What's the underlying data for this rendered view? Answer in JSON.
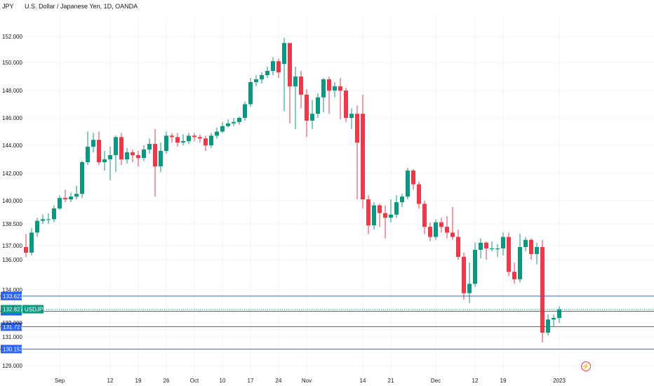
{
  "header": {
    "symbol_short": "JPY",
    "title": "U.S. Dollar / Japanese Yen, 1D, OANDA"
  },
  "colors": {
    "up": "#089981",
    "down": "#f23645",
    "level": "#2962ff",
    "grid": "#f0f3fa"
  },
  "chart_data": {
    "type": "candlestick",
    "title": "U.S. Dollar / Japanese Yen, 1D, OANDA",
    "ylim": [
      128.0,
      153.0
    ],
    "y_ticks": [
      {
        "value": 152.0,
        "label": "152.000"
      },
      {
        "value": 150.0,
        "label": "150.000"
      },
      {
        "value": 148.0,
        "label": "148.000"
      },
      {
        "value": 146.0,
        "label": "146.000"
      },
      {
        "value": 144.0,
        "label": "144.000"
      },
      {
        "value": 142.0,
        "label": "142.000"
      },
      {
        "value": 140.0,
        "label": "140.000"
      },
      {
        "value": 138.5,
        "label": "138.500"
      },
      {
        "value": 137.0,
        "label": "137.000"
      },
      {
        "value": 136.0,
        "label": "136.000"
      },
      {
        "value": 134.0,
        "label": "134.000"
      },
      {
        "value": 132.0,
        "label": "132.000"
      },
      {
        "value": 131.0,
        "label": "131.000"
      },
      {
        "value": 129.0,
        "label": "129.000"
      }
    ],
    "x_ticks": [
      {
        "index": 6,
        "label": "Sep"
      },
      {
        "index": 15,
        "label": "12"
      },
      {
        "index": 20,
        "label": "19"
      },
      {
        "index": 25,
        "label": "26"
      },
      {
        "index": 30,
        "label": "Oct"
      },
      {
        "index": 35,
        "label": "10"
      },
      {
        "index": 40,
        "label": "17"
      },
      {
        "index": 45,
        "label": "24"
      },
      {
        "index": 50,
        "label": "Nov"
      },
      {
        "index": 60,
        "label": "14"
      },
      {
        "index": 65,
        "label": "21"
      },
      {
        "index": 73,
        "label": "Dec"
      },
      {
        "index": 80,
        "label": "12"
      },
      {
        "index": 85,
        "label": "19"
      },
      {
        "index": 95,
        "label": "2023"
      }
    ],
    "candles": [
      [
        136.9,
        136.5,
        137.8,
        136.2
      ],
      [
        136.5,
        137.9,
        138.2,
        136.3
      ],
      [
        137.9,
        138.7,
        138.9,
        137.6
      ],
      [
        138.7,
        138.8,
        139.1,
        138.5
      ],
      [
        138.8,
        138.8,
        139.2,
        138.5
      ],
      [
        138.8,
        139.5,
        139.7,
        138.6
      ],
      [
        139.5,
        140.2,
        140.4,
        139.4
      ],
      [
        140.2,
        140.1,
        140.8,
        139.9
      ],
      [
        140.1,
        140.3,
        140.6,
        139.9
      ],
      [
        140.3,
        140.5,
        141.1,
        140.1
      ],
      [
        140.5,
        142.8,
        142.9,
        140.2
      ],
      [
        142.8,
        143.9,
        145.0,
        142.6
      ],
      [
        143.9,
        144.4,
        144.9,
        143.5
      ],
      [
        144.4,
        142.8,
        145.0,
        142.6
      ],
      [
        142.8,
        143.0,
        143.6,
        142.2
      ],
      [
        143.0,
        143.3,
        143.9,
        141.5
      ],
      [
        143.3,
        144.6,
        144.7,
        142.1
      ],
      [
        144.6,
        143.0,
        144.9,
        142.6
      ],
      [
        143.0,
        143.5,
        143.8,
        142.7
      ],
      [
        143.5,
        143.3,
        143.7,
        142.8
      ],
      [
        143.3,
        143.1,
        143.6,
        142.5
      ],
      [
        143.1,
        143.7,
        144.0,
        142.9
      ],
      [
        143.7,
        144.1,
        144.5,
        143.4
      ],
      [
        144.1,
        142.5,
        145.2,
        140.3
      ],
      [
        142.5,
        143.6,
        144.2,
        142.1
      ],
      [
        143.6,
        144.7,
        145.0,
        143.4
      ],
      [
        144.7,
        144.6,
        144.9,
        144.2
      ],
      [
        144.6,
        144.2,
        144.9,
        143.9
      ],
      [
        144.2,
        144.3,
        144.8,
        144.0
      ],
      [
        144.3,
        144.7,
        144.9,
        144.1
      ],
      [
        144.7,
        144.6,
        144.9,
        144.3
      ],
      [
        144.6,
        144.5,
        144.8,
        144.2
      ],
      [
        144.5,
        144.0,
        144.7,
        143.6
      ],
      [
        144.0,
        144.7,
        144.9,
        143.8
      ],
      [
        144.7,
        145.0,
        145.3,
        144.5
      ],
      [
        145.0,
        145.4,
        145.7,
        144.9
      ],
      [
        145.4,
        145.6,
        145.9,
        145.3
      ],
      [
        145.6,
        145.7,
        146.0,
        145.4
      ],
      [
        145.7,
        146.0,
        146.1,
        145.5
      ],
      [
        146.0,
        147.0,
        147.2,
        145.8
      ],
      [
        147.0,
        148.6,
        148.9,
        146.8
      ],
      [
        148.6,
        148.8,
        149.1,
        148.3
      ],
      [
        148.8,
        149.1,
        149.3,
        148.5
      ],
      [
        149.1,
        149.4,
        149.7,
        148.9
      ],
      [
        149.4,
        150.1,
        150.4,
        149.1
      ],
      [
        150.1,
        149.3,
        150.3,
        148.9
      ],
      [
        149.9,
        151.5,
        151.9,
        146.5
      ],
      [
        151.5,
        148.3,
        150.2,
        145.6
      ],
      [
        148.3,
        149.0,
        149.7,
        145.2
      ],
      [
        149.0,
        147.7,
        149.4,
        146.7
      ],
      [
        147.7,
        145.8,
        148.1,
        144.6
      ],
      [
        145.8,
        146.3,
        147.3,
        145.2
      ],
      [
        146.3,
        147.5,
        147.8,
        146.0
      ],
      [
        147.5,
        148.8,
        148.9,
        146.4
      ],
      [
        148.8,
        148.0,
        149.0,
        146.3
      ],
      [
        148.0,
        148.3,
        148.6,
        147.5
      ],
      [
        148.3,
        148.0,
        148.9,
        145.9
      ],
      [
        148.0,
        146.0,
        148.2,
        145.7
      ],
      [
        146.0,
        146.3,
        146.7,
        145.2
      ],
      [
        146.3,
        144.2,
        146.9,
        140.1
      ],
      [
        146.3,
        140.1,
        147.7,
        139.5
      ],
      [
        140.1,
        138.4,
        140.4,
        137.8
      ],
      [
        138.4,
        139.7,
        139.9,
        138.1
      ],
      [
        139.7,
        139.2,
        139.8,
        138.3
      ],
      [
        139.2,
        138.9,
        139.7,
        137.5
      ],
      [
        138.9,
        139.1,
        140.1,
        138.6
      ],
      [
        139.1,
        139.9,
        140.4,
        138.9
      ],
      [
        139.9,
        140.3,
        140.5,
        139.6
      ],
      [
        140.3,
        142.2,
        142.4,
        140.1
      ],
      [
        142.2,
        141.2,
        142.3,
        140.8
      ],
      [
        141.2,
        139.8,
        141.4,
        139.5
      ],
      [
        139.8,
        138.3,
        140.0,
        137.8
      ],
      [
        138.3,
        137.6,
        138.6,
        137.3
      ],
      [
        137.6,
        138.6,
        138.8,
        137.4
      ],
      [
        138.6,
        138.3,
        138.9,
        137.9
      ],
      [
        138.3,
        137.9,
        139.0,
        137.5
      ],
      [
        137.9,
        137.6,
        139.6,
        137.4
      ],
      [
        137.6,
        136.2,
        138.1,
        136.0
      ],
      [
        136.2,
        133.8,
        136.5,
        133.4
      ],
      [
        133.8,
        134.4,
        135.8,
        133.2
      ],
      [
        134.4,
        136.7,
        137.2,
        134.2
      ],
      [
        136.7,
        137.2,
        137.5,
        136.1
      ],
      [
        137.2,
        136.8,
        137.3,
        136.0
      ],
      [
        136.8,
        136.8,
        137.3,
        136.6
      ],
      [
        136.8,
        136.8,
        137.1,
        136.2
      ],
      [
        136.8,
        137.6,
        137.9,
        136.3
      ],
      [
        137.6,
        135.2,
        137.9,
        134.9
      ],
      [
        135.2,
        134.7,
        135.8,
        134.4
      ],
      [
        134.7,
        136.9,
        137.8,
        134.5
      ],
      [
        136.9,
        137.4,
        137.6,
        136.6
      ],
      [
        137.4,
        136.4,
        137.5,
        136.0
      ],
      [
        136.4,
        136.9,
        137.2,
        135.7
      ],
      [
        136.9,
        131.3,
        137.4,
        130.6
      ],
      [
        131.3,
        132.2,
        132.5,
        131.1
      ],
      [
        132.2,
        132.3,
        132.5,
        131.7
      ],
      [
        132.3,
        132.8,
        133.0,
        132.0
      ]
    ],
    "levels": [
      {
        "value": 133.623,
        "label": "133.623"
      },
      {
        "value": 132.702,
        "label": "132.702"
      },
      {
        "value": 131.727,
        "label": "131.727"
      },
      {
        "value": 130.153,
        "label": "130.153"
      }
    ],
    "last_price": {
      "value": 132.827,
      "label": "132.827",
      "symbol": "USDJPY"
    }
  }
}
